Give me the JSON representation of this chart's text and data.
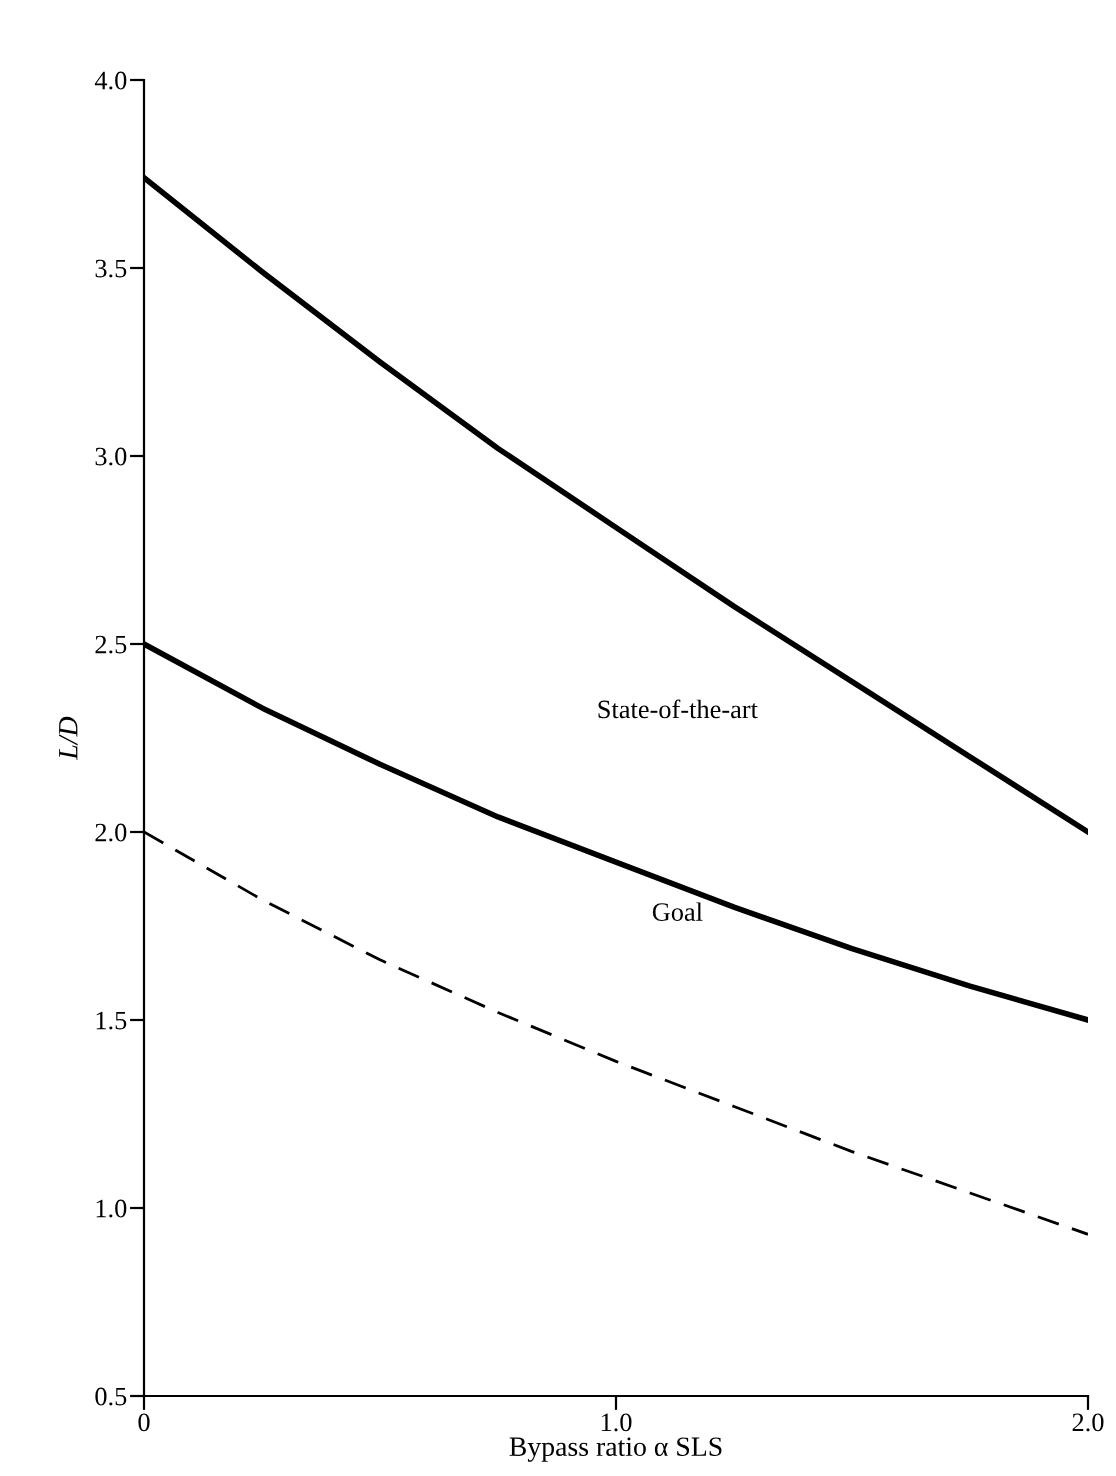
{
  "chart_data": {
    "type": "line",
    "xlabel": "Bypass ratio α SLS",
    "ylabel": "L/D",
    "xlim": [
      0,
      2.0
    ],
    "ylim": [
      0.5,
      4.0
    ],
    "xticks": [
      0,
      {
        "value": 1.0,
        "label": "1.0"
      },
      {
        "value": 2.0,
        "label": "2.0"
      }
    ],
    "yticks": [
      {
        "value": 0.5,
        "label": "0.5"
      },
      {
        "value": 1.0,
        "label": "1.0"
      },
      {
        "value": 1.5,
        "label": "1.5"
      },
      {
        "value": 2.0,
        "label": "2.0"
      },
      {
        "value": 2.5,
        "label": "2.5"
      },
      {
        "value": 3.0,
        "label": "3.0"
      },
      {
        "value": 3.5,
        "label": "3.5"
      },
      {
        "value": 4.0,
        "label": "4.0"
      }
    ],
    "grid": false,
    "legend": false,
    "marker": "none",
    "x": [
      0,
      0.25,
      0.5,
      0.75,
      1.0,
      1.25,
      1.5,
      1.75,
      2.0
    ],
    "series": [
      {
        "color": "#000000",
        "line_style": "solid",
        "values": [
          3.74,
          3.49,
          3.25,
          3.02,
          2.81,
          2.6,
          2.4,
          2.2,
          2.0
        ]
      },
      {
        "color": "#000000",
        "line_style": "solid",
        "values": [
          2.5,
          2.33,
          2.18,
          2.04,
          1.92,
          1.8,
          1.69,
          1.59,
          1.5
        ]
      },
      {
        "color": "#000000",
        "line_style": "dashed",
        "values": [
          2.0,
          1.82,
          1.66,
          1.52,
          1.39,
          1.27,
          1.15,
          1.04,
          0.93
        ]
      }
    ],
    "annotations": [
      "State-of-the-art",
      "Goal"
    ]
  }
}
